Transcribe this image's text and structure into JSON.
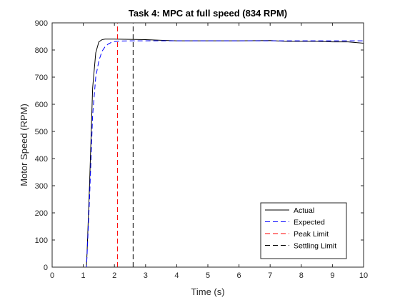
{
  "chart_data": {
    "type": "line",
    "title": "Task 4: MPC at full speed (834 RPM)",
    "xlabel": "Time (s)",
    "ylabel": "Motor Speed (RPM)",
    "xlim": [
      0,
      10
    ],
    "ylim": [
      0,
      900
    ],
    "xticks": [
      0,
      1,
      2,
      3,
      4,
      5,
      6,
      7,
      8,
      9,
      10
    ],
    "yticks": [
      0,
      100,
      200,
      300,
      400,
      500,
      600,
      700,
      800,
      900
    ],
    "xtick_labels": [
      "0",
      "1",
      "2",
      "3",
      "4",
      "5",
      "6",
      "7",
      "8",
      "9",
      "10"
    ],
    "ytick_labels": [
      "0",
      "100",
      "200",
      "300",
      "400",
      "500",
      "600",
      "700",
      "800",
      "900"
    ],
    "grid": false,
    "legend_position": "bottom-right",
    "series": [
      {
        "name": "Actual",
        "color": "#000000",
        "style": "solid",
        "x": [
          0,
          1.1,
          1.12,
          1.2,
          1.3,
          1.4,
          1.5,
          1.6,
          1.7,
          1.8,
          1.9,
          2.0,
          2.5,
          3.0,
          3.5,
          4.0,
          5.0,
          6.0,
          7.0,
          7.5,
          8.0,
          8.5,
          9.0,
          9.5,
          10.0
        ],
        "y": [
          0,
          0,
          50,
          300,
          660,
          790,
          830,
          838,
          840,
          840,
          840,
          840,
          839,
          838,
          836,
          834,
          834,
          834,
          835,
          832,
          832,
          832,
          830,
          830,
          825
        ]
      },
      {
        "name": "Expected",
        "color": "#0000ff",
        "style": "dashed",
        "x": [
          0,
          1.1,
          1.12,
          1.2,
          1.3,
          1.4,
          1.5,
          1.6,
          1.7,
          1.8,
          1.9,
          2.0,
          2.2,
          2.5,
          3.0,
          4.0,
          5.0,
          6.0,
          7.0,
          8.0,
          9.0,
          10.0
        ],
        "y": [
          0,
          0,
          40,
          250,
          560,
          700,
          760,
          795,
          812,
          822,
          828,
          831,
          833,
          834,
          834,
          834,
          834,
          834,
          834,
          834,
          834,
          834
        ]
      },
      {
        "name": "Peak Limit",
        "color": "#ff0000",
        "style": "dashed",
        "x": [
          2.1,
          2.1
        ],
        "y": [
          0,
          900
        ]
      },
      {
        "name": "Settling Limit",
        "color": "#000000",
        "style": "dashed",
        "x": [
          2.6,
          2.6
        ],
        "y": [
          0,
          900
        ]
      }
    ]
  }
}
